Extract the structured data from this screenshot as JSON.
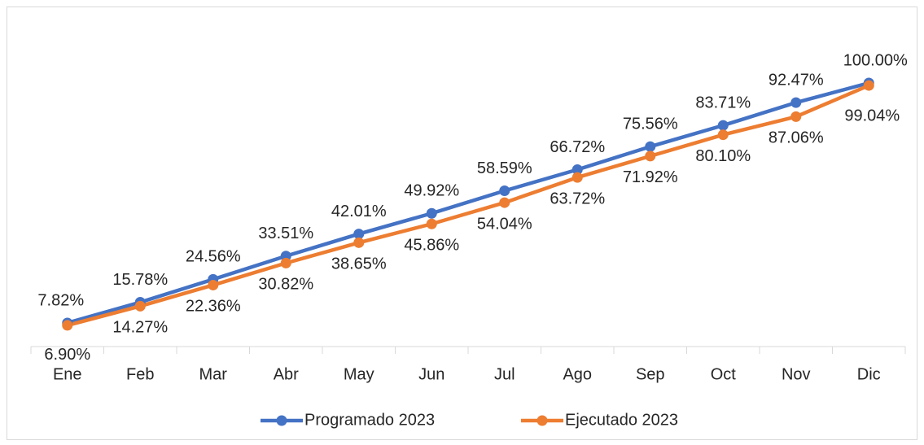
{
  "chart_data": {
    "type": "line",
    "categories": [
      "Ene",
      "Feb",
      "Mar",
      "Abr",
      "May",
      "Jun",
      "Jul",
      "Ago",
      "Sep",
      "Oct",
      "Nov",
      "Dic"
    ],
    "series": [
      {
        "name": "Programado 2023",
        "color": "#4472c4",
        "values": [
          7.82,
          15.78,
          24.56,
          33.51,
          42.01,
          49.92,
          58.59,
          66.72,
          75.56,
          83.71,
          92.47,
          100.0
        ],
        "value_labels": [
          "7.82%",
          "15.78%",
          "24.56%",
          "33.51%",
          "42.01%",
          "49.92%",
          "58.59%",
          "66.72%",
          "75.56%",
          "83.71%",
          "92.47%",
          "100.00%"
        ]
      },
      {
        "name": "Ejecutado 2023",
        "color": "#ed7d31",
        "values": [
          6.9,
          14.27,
          22.36,
          30.82,
          38.65,
          45.86,
          54.04,
          63.72,
          71.92,
          80.1,
          87.06,
          99.04
        ],
        "value_labels": [
          "6.90%",
          "14.27%",
          "22.36%",
          "30.82%",
          "38.65%",
          "45.86%",
          "54.04%",
          "63.72%",
          "71.92%",
          "80.10%",
          "87.06%",
          "99.04%"
        ]
      }
    ],
    "ylim": [
      0,
      100
    ],
    "legend": "bottom"
  }
}
